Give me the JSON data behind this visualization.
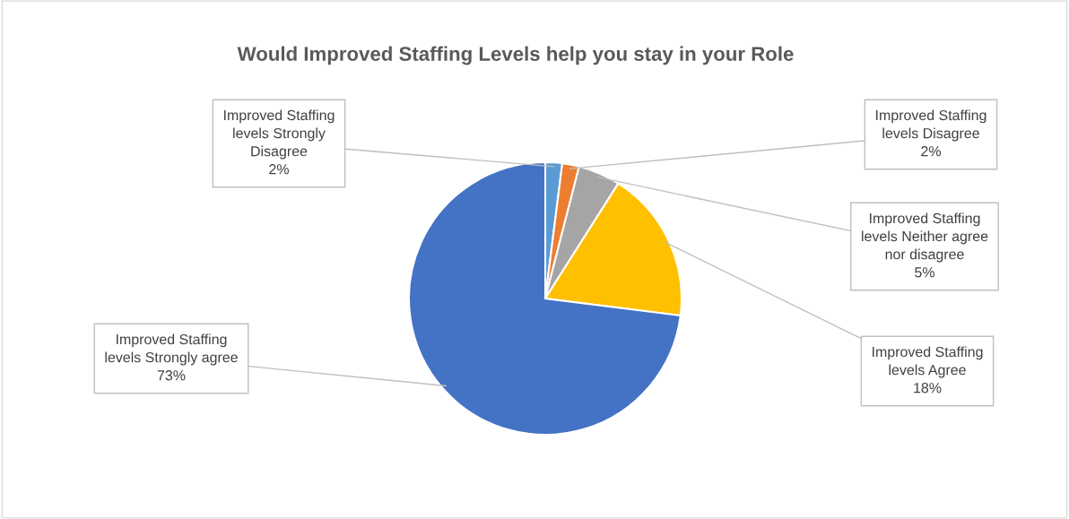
{
  "chart_data": {
    "type": "pie",
    "title": "Would Improved Staffing Levels help you stay in your Role",
    "categories": [
      "Improved Staffing\nlevels Strongly\nDisagree",
      "Improved Staffing\nlevels Disagree",
      "Improved Staffing\nlevels Neither agree\nnor disagree",
      "Improved Staffing\nlevels Agree",
      "Improved Staffing\nlevels Strongly agree"
    ],
    "values": [
      2,
      2,
      5,
      18,
      73
    ],
    "value_labels": [
      "2%",
      "2%",
      "5%",
      "18%",
      "73%"
    ],
    "colors": [
      "#5b9bd5",
      "#ed7d31",
      "#a5a5a5",
      "#ffc000",
      "#4472c4"
    ]
  }
}
